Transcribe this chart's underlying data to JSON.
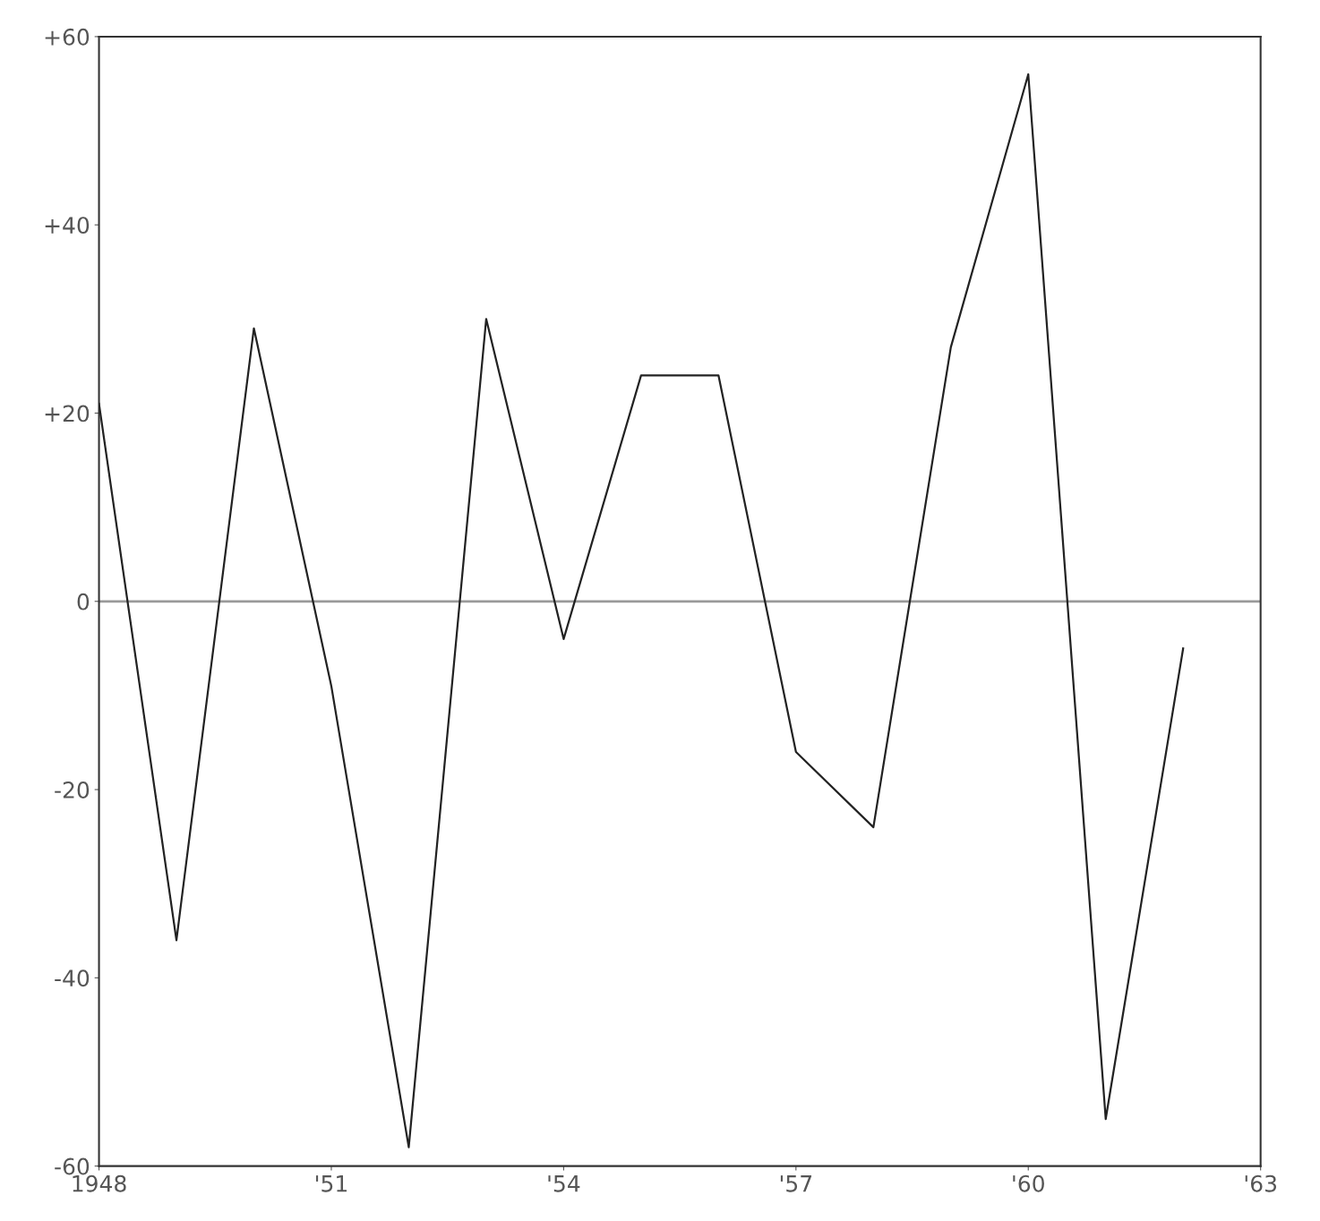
{
  "chart_data": {
    "type": "line",
    "x": [
      1948,
      1949,
      1950,
      1951,
      1952,
      1953,
      1954,
      1955,
      1956,
      1957,
      1958,
      1959,
      1960,
      1961,
      1962
    ],
    "series": [
      {
        "color": "#222222",
        "values": [
          21,
          -36,
          29,
          -9,
          -58,
          30,
          -4,
          24,
          24,
          -16,
          -24,
          27,
          56,
          -55,
          -5
        ]
      }
    ],
    "xlim": [
      1948,
      1963
    ],
    "xticks": [
      {
        "value": 1948,
        "label": "1948"
      },
      {
        "value": 1951,
        "label": "'51"
      },
      {
        "value": 1954,
        "label": "'54"
      },
      {
        "value": 1957,
        "label": "'57"
      },
      {
        "value": 1960,
        "label": "'60"
      },
      {
        "value": 1963,
        "label": "'63"
      }
    ],
    "ylim": [
      -60,
      60
    ],
    "yticks": [
      {
        "value": 60,
        "label": "+60"
      },
      {
        "value": 40,
        "label": "+40"
      },
      {
        "value": 20,
        "label": "+20"
      },
      0,
      -20,
      -40,
      -60
    ],
    "ref_lines": [
      {
        "axis": "y",
        "value": 0,
        "color": "#999999",
        "line_style": "solid"
      }
    ],
    "grid": false,
    "marker": "none",
    "line_style": "solid"
  }
}
